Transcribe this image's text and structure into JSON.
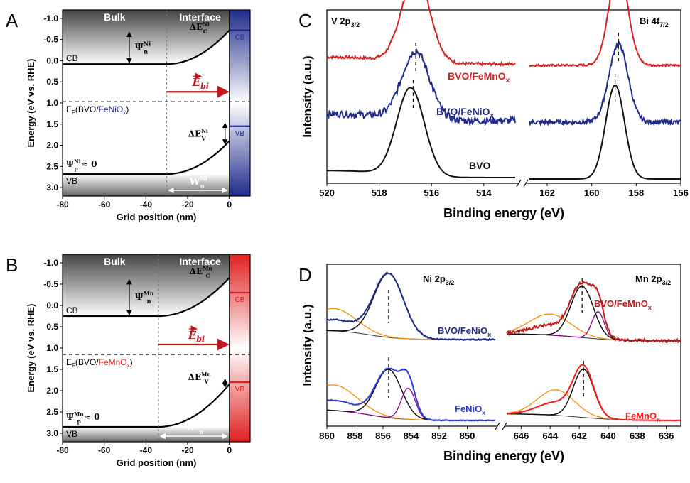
{
  "chart_data": [
    {
      "panel": "A",
      "type": "line",
      "ylabel": "Energy (eV vs. RHE)",
      "xlabel": "Grid position (nm)",
      "xticks": [
        "-80",
        "-60",
        "-40",
        "-20",
        "0"
      ],
      "yticks": [
        "-1.0",
        "-0.5",
        "0.0",
        "0.5",
        "1.0",
        "1.5",
        "2.0",
        "2.5",
        "3.0"
      ],
      "xlim": [
        -80,
        10
      ],
      "ylim": [
        3.2,
        -1.2
      ],
      "region_labels": {
        "bulk": "Bulk",
        "interface": "Interface"
      },
      "ef": 0.97,
      "ef_label": {
        "pre": "E",
        "sub": "F",
        "open": "(BVO/",
        "material": "FeNiO",
        "msub": "x",
        "close": ")"
      },
      "cb": {
        "label": "CB",
        "bulk": 0.08,
        "surface": -0.72,
        "x0": -30
      },
      "vb": {
        "label": "VB",
        "bulk": 2.68,
        "surface": 1.9,
        "x0": -30
      },
      "contact": {
        "cb": -0.72,
        "vb": 1.55,
        "cb_label": "CB",
        "vb_label": "VB",
        "color": "#1f2b8c"
      },
      "psi_n": {
        "sym": "Ψ",
        "sub": "n",
        "sup": "Ni"
      },
      "psi_p": {
        "sym": "Ψ",
        "sub": "p",
        "sup": "Ni",
        "tail": "≈ 0"
      },
      "dec": {
        "sym": "ΔE",
        "sub": "C",
        "sup": "Ni"
      },
      "dev": {
        "sym": "ΔE",
        "sub": "V",
        "sup": "Ni"
      },
      "wn": {
        "sym": "W",
        "sub": "n",
        "sup": "Ni"
      },
      "ebi": {
        "sym": "E",
        "sub": "bi"
      }
    },
    {
      "panel": "B",
      "type": "line",
      "ylabel": "Energy (eV vs. RHE)",
      "xlabel": "Grid position (nm)",
      "xticks": [
        "-80",
        "-60",
        "-40",
        "-20",
        "0"
      ],
      "yticks": [
        "-1.0",
        "-0.5",
        "0.0",
        "0.5",
        "1.0",
        "1.5",
        "2.0",
        "2.5",
        "3.0"
      ],
      "xlim": [
        -80,
        10
      ],
      "ylim": [
        3.2,
        -1.2
      ],
      "region_labels": {
        "bulk": "Bulk",
        "interface": "Interface"
      },
      "ef": 1.15,
      "ef_label": {
        "pre": "E",
        "sub": "F",
        "open": "(BVO/",
        "material": "FeMnO",
        "msub": "x",
        "close": ")"
      },
      "cb": {
        "label": "CB",
        "bulk": 0.25,
        "surface": -0.65,
        "x0": -34
      },
      "vb": {
        "label": "VB",
        "bulk": 2.85,
        "surface": 1.85,
        "x0": -34
      },
      "contact": {
        "cb": -0.3,
        "vb": 1.8,
        "cb_label": "CB",
        "vb_label": "VB",
        "color": "#e02020"
      },
      "psi_n": {
        "sym": "Ψ",
        "sub": "n",
        "sup": "Mn"
      },
      "psi_p": {
        "sym": "Ψ",
        "sub": "p",
        "sup": "Mn",
        "tail": "≈ 0"
      },
      "dec": {
        "sym": "ΔE",
        "sub": "C",
        "sup": "Mn"
      },
      "dev": {
        "sym": "ΔE",
        "sub": "V",
        "sup": "Mn"
      },
      "wn": {
        "sym": "W",
        "sub": "n",
        "sup": "Mn"
      },
      "ebi": {
        "sym": "E",
        "sub": "bi"
      }
    },
    {
      "panel": "C",
      "type": "line",
      "ylabel": "Intensity (a.u.)",
      "xlabel": "Binding energy (eV)",
      "xticks_left": [
        "520",
        "518",
        "516",
        "514"
      ],
      "xticks_right": [
        "162",
        "160",
        "158",
        "156"
      ],
      "xlim_left": [
        520,
        512.8
      ],
      "xlim_right": [
        162.8,
        156
      ],
      "region_labels": [
        {
          "main": "V 2p",
          "sub": "3/2"
        },
        {
          "main": "Bi 4f",
          "sub": "7/2"
        }
      ],
      "series": [
        {
          "name": "BVO/FeMnO",
          "sub": "x",
          "color": "#d42020",
          "base": 0.8,
          "v_peak": 516.6,
          "bi_peak": 158.8,
          "v_amp": 0.62,
          "bi_amp": 0.68,
          "dash": 516.5
        },
        {
          "name": "BVO/FeNiO",
          "sub": "x",
          "color": "#1f2b8c",
          "base": 0.4,
          "v_peak": 516.6,
          "bi_peak": 158.8,
          "v_amp": 0.48,
          "bi_amp": 0.55,
          "dash": 516.6
        },
        {
          "name": "BVO",
          "sub": "",
          "color": "#111111",
          "base": 0.0,
          "v_peak": 516.8,
          "bi_peak": 158.95,
          "v_amp": 0.62,
          "bi_amp": 0.66,
          "dash": 516.7
        }
      ]
    },
    {
      "panel": "D",
      "type": "line",
      "ylabel": "Intensity (a.u.)",
      "xlabel": "Binding energy (eV)",
      "xticks_left": [
        "860",
        "858",
        "856",
        "854",
        "852",
        "850"
      ],
      "xticks_right": [
        "646",
        "644",
        "642",
        "640",
        "638",
        "636"
      ],
      "xlim_left": [
        860,
        848
      ],
      "xlim_right": [
        647,
        635
      ],
      "region_labels": [
        {
          "main": "Ni 2p",
          "sub": "3/2"
        },
        {
          "main": "Mn 2p",
          "sub": "3/2"
        }
      ],
      "series": [
        {
          "name": "BVO/FeNiO",
          "sub": "x",
          "color": "#1f2b8c",
          "peak": 855.6,
          "dash": 855.6
        },
        {
          "name": "FeNiO",
          "sub": "x",
          "color": "#2a3ad8",
          "peak": 855.6,
          "peak2": 854.2,
          "dash": 855.6
        },
        {
          "name": "BVO/FeMnO",
          "sub": "x",
          "color": "#c01818",
          "peak": 641.8,
          "peak2": 640.7,
          "dash": 641.8
        },
        {
          "name": "FeMnO",
          "sub": "x",
          "color": "#ff1a1a",
          "peak": 641.7,
          "dash": 641.7
        }
      ],
      "fit_colors": {
        "envelope": "#111111",
        "shoulder": "#ff8c00",
        "satellite": "#8b008b"
      }
    }
  ],
  "panel_letters": [
    "A",
    "B",
    "C",
    "D"
  ]
}
